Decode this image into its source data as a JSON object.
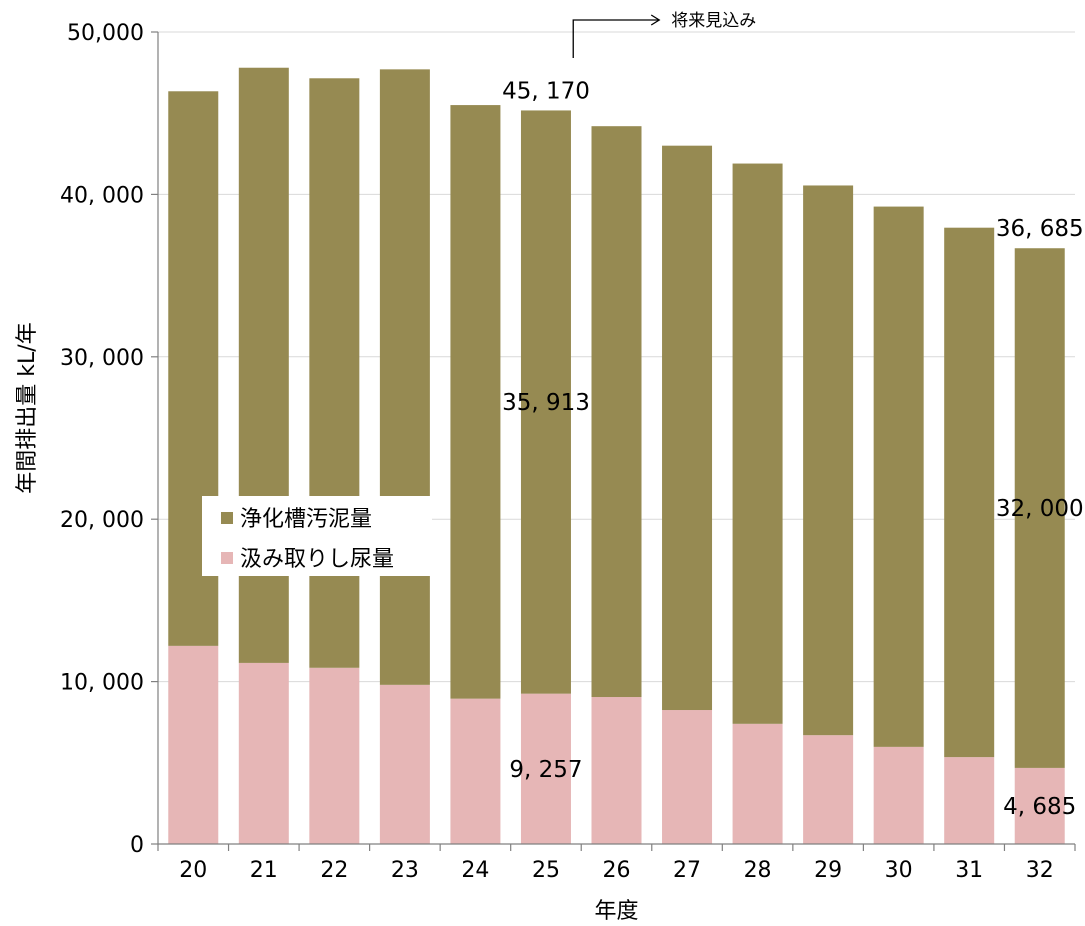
{
  "chart_data": {
    "type": "bar",
    "stacked": true,
    "categories": [
      "20",
      "21",
      "22",
      "23",
      "24",
      "25",
      "26",
      "27",
      "28",
      "29",
      "30",
      "31",
      "32"
    ],
    "series": [
      {
        "name": "汲み取りし尿量",
        "color": "#e6b6b6",
        "values": [
          12200,
          11150,
          10850,
          9800,
          8950,
          9257,
          9050,
          8250,
          7400,
          6700,
          5980,
          5350,
          4685
        ]
      },
      {
        "name": "浄化槽汚泥量",
        "color": "#968a52",
        "values": [
          34150,
          36650,
          36300,
          37900,
          36550,
          35913,
          35150,
          34750,
          34500,
          33850,
          33270,
          32600,
          32000
        ]
      }
    ],
    "xlabel": "年度",
    "ylabel": "年間排出量 kL/年",
    "ylim": [
      0,
      50000
    ],
    "yticks": [
      0,
      10000,
      20000,
      30000,
      40000,
      50000
    ],
    "ytick_labels": [
      "0",
      "10, 000",
      "20, 000",
      "30, 000",
      "40, 000",
      "50,000"
    ],
    "grid": true,
    "legend_position": "center-left",
    "legend_order": [
      "浄化槽汚泥量",
      "汲み取りし尿量"
    ],
    "data_labels": [
      {
        "category": "25",
        "text": "45, 170",
        "kind": "total"
      },
      {
        "category": "25",
        "text": "35, 913",
        "kind": "segment",
        "series": "浄化槽汚泥量"
      },
      {
        "category": "25",
        "text": "9, 257",
        "kind": "segment",
        "series": "汲み取りし尿量"
      },
      {
        "category": "32",
        "text": "36, 685",
        "kind": "total"
      },
      {
        "category": "32",
        "text": "32, 000",
        "kind": "segment",
        "series": "浄化槽汚泥量"
      },
      {
        "category": "32",
        "text": "4, 685",
        "kind": "segment",
        "series": "汲み取りし尿量"
      }
    ],
    "annotation": {
      "text": "将来見込み",
      "from_category": "26"
    }
  }
}
